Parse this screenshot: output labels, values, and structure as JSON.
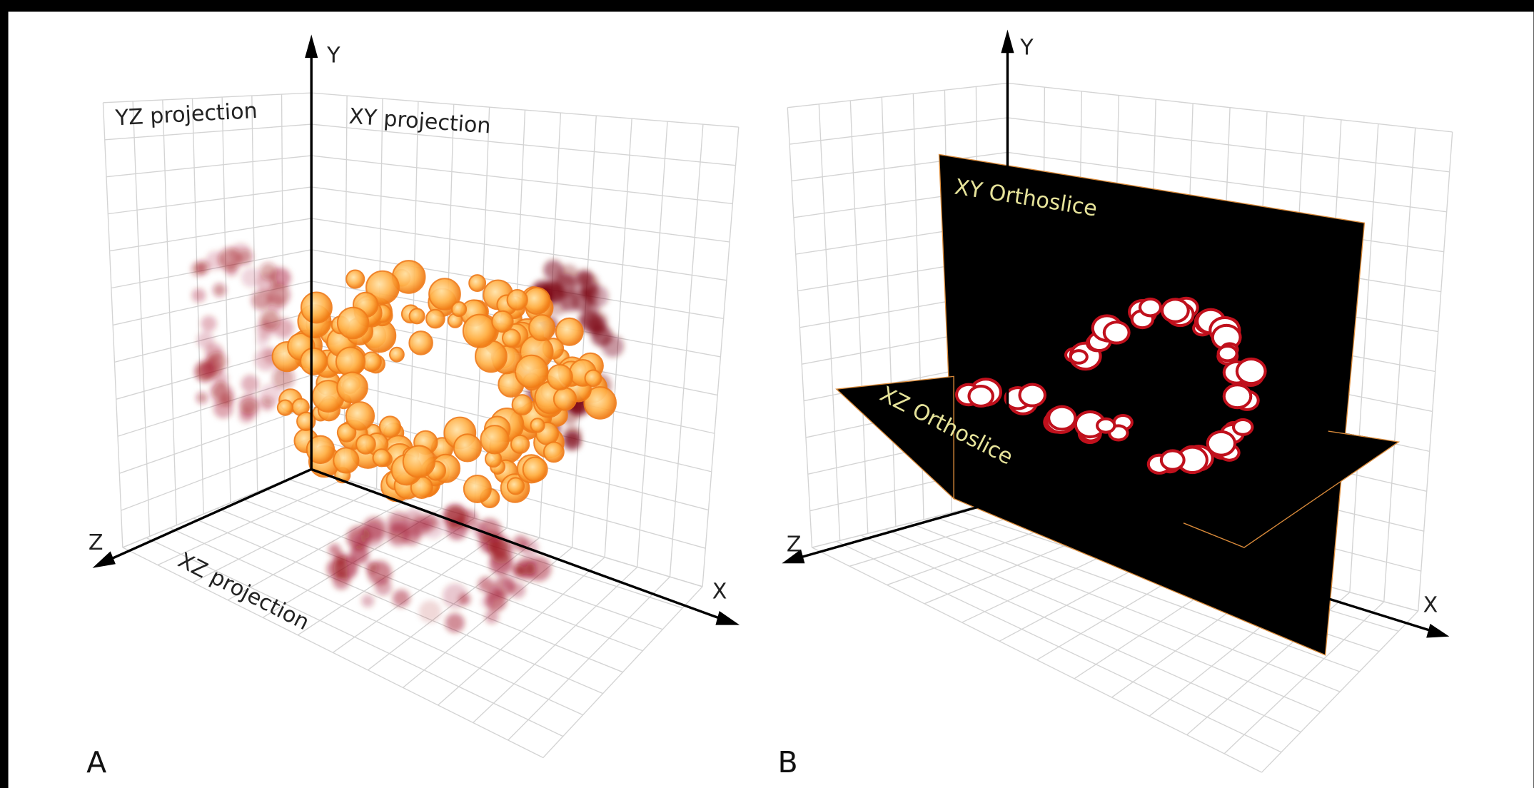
{
  "panels": [
    {
      "label": "A",
      "axes": {
        "x": "X",
        "y": "Y",
        "z": "Z"
      },
      "annotations": [
        "YZ projection",
        "XY projection",
        "XZ projection"
      ]
    },
    {
      "label": "B",
      "axes": {
        "x": "X",
        "y": "Y",
        "z": "Z"
      },
      "annotations": [
        "XY Orthoslice",
        "XZ Orthoslice"
      ]
    }
  ]
}
